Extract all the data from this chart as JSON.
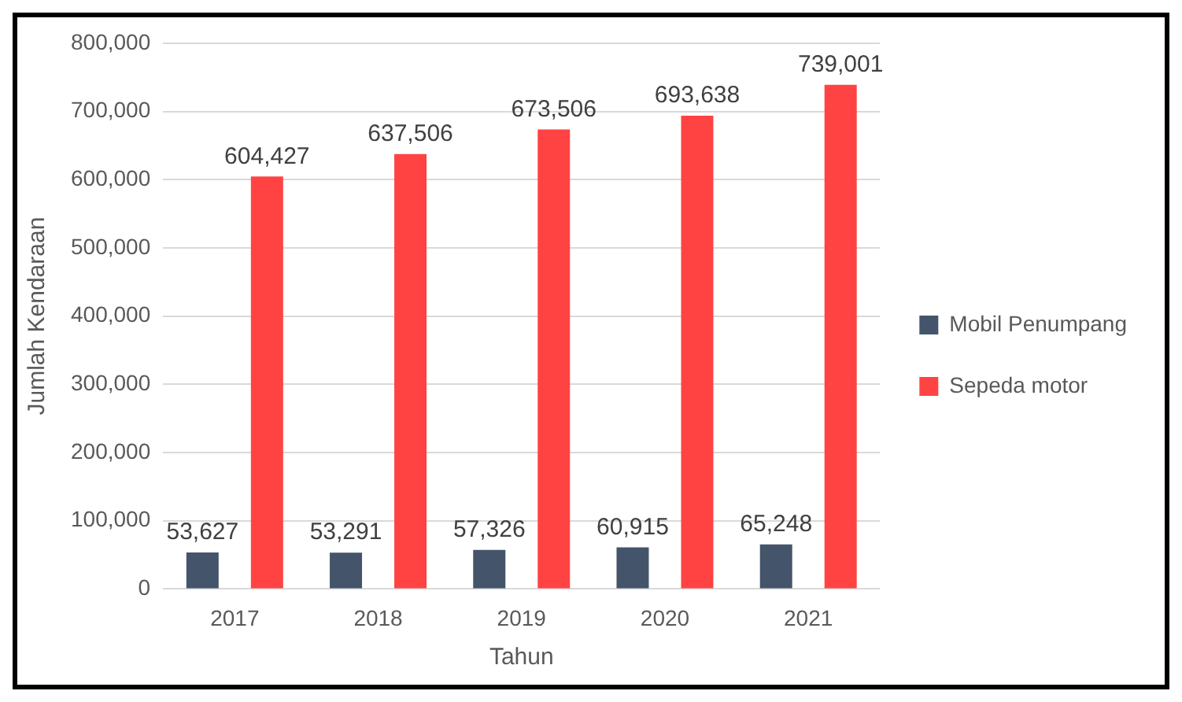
{
  "chart_data": {
    "type": "bar",
    "xlabel": "Tahun",
    "ylabel": "Jumlah Kendaraan",
    "categories": [
      "2017",
      "2018",
      "2019",
      "2020",
      "2021"
    ],
    "series": [
      {
        "name": "Mobil Penumpang",
        "color": "#44546a",
        "values": [
          53627,
          53291,
          57326,
          60915,
          65248
        ],
        "value_labels": [
          "53,627",
          "53,291",
          "57,326",
          "60,915",
          "65,248"
        ]
      },
      {
        "name": "Sepeda motor",
        "color": "#ff4343",
        "values": [
          604427,
          637506,
          673506,
          693638,
          739001
        ],
        "value_labels": [
          "604,427",
          "637,506",
          "673,506",
          "693,638",
          "739,001"
        ]
      }
    ],
    "ylim": [
      0,
      800000
    ],
    "yticks": [
      {
        "value": 0,
        "label": "0"
      },
      {
        "value": 100000,
        "label": "100,000"
      },
      {
        "value": 200000,
        "label": "200,000"
      },
      {
        "value": 300000,
        "label": "300,000"
      },
      {
        "value": 400000,
        "label": "400,000"
      },
      {
        "value": 500000,
        "label": "500,000"
      },
      {
        "value": 600000,
        "label": "600,000"
      },
      {
        "value": 700000,
        "label": "700,000"
      },
      {
        "value": 800000,
        "label": "800,000"
      }
    ],
    "grid": "y",
    "legend": "right"
  }
}
